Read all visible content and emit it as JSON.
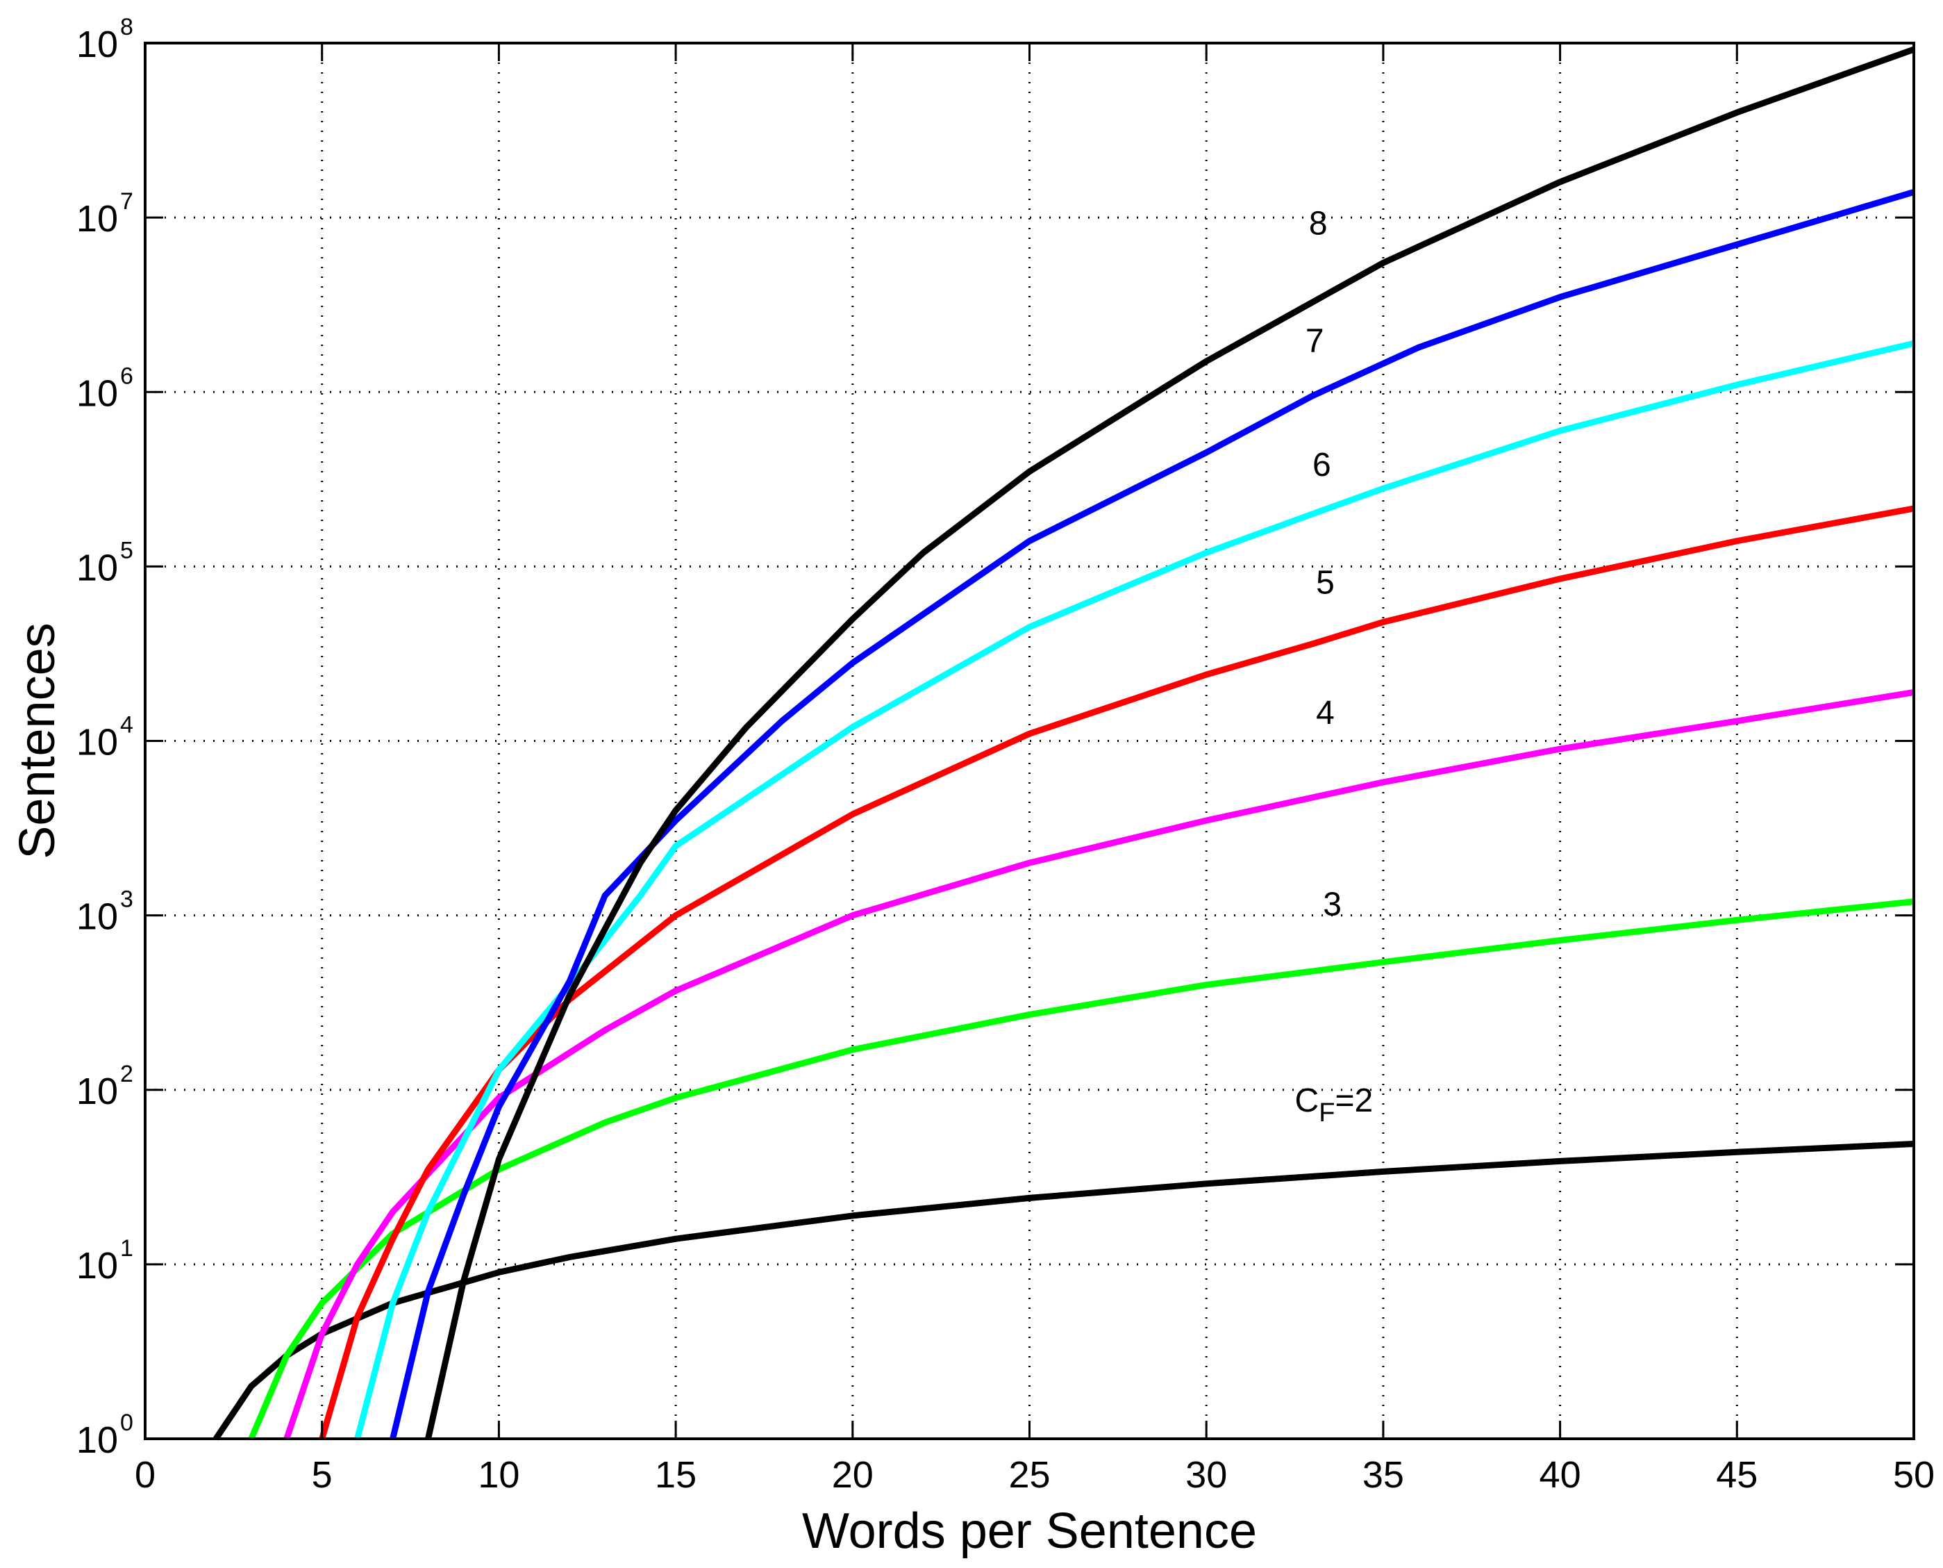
{
  "chart_data": {
    "type": "line",
    "title": "",
    "xlabel": "Words per Sentence",
    "ylabel": "Sentences",
    "xlim": [
      0,
      50
    ],
    "ylim": [
      1,
      100000000
    ],
    "yscale": "log",
    "grid": true,
    "grid_style": "dotted",
    "legend": "none (inline curve labels)",
    "x_ticks": [
      0,
      5,
      10,
      15,
      20,
      25,
      30,
      35,
      40,
      45,
      50
    ],
    "y_ticks": [
      {
        "base": "10",
        "exp": "0"
      },
      {
        "base": "10",
        "exp": "1"
      },
      {
        "base": "10",
        "exp": "2"
      },
      {
        "base": "10",
        "exp": "3"
      },
      {
        "base": "10",
        "exp": "4"
      },
      {
        "base": "10",
        "exp": "5"
      },
      {
        "base": "10",
        "exp": "6"
      },
      {
        "base": "10",
        "exp": "7"
      },
      {
        "base": "10",
        "exp": "8"
      }
    ],
    "series": [
      {
        "name": "C_F=2",
        "label": "C",
        "label_sub": "F",
        "label_suffix": "=2",
        "color": "#000000",
        "label_x": 32.5,
        "label_y": 75,
        "points": [
          [
            2,
            1
          ],
          [
            3,
            2
          ],
          [
            4,
            3
          ],
          [
            5,
            4
          ],
          [
            7,
            6
          ],
          [
            10,
            9
          ],
          [
            12,
            11
          ],
          [
            15,
            14
          ],
          [
            20,
            19
          ],
          [
            25,
            24
          ],
          [
            30,
            29
          ],
          [
            35,
            34
          ],
          [
            40,
            39
          ],
          [
            45,
            44
          ],
          [
            50,
            49
          ]
        ]
      },
      {
        "name": "C_F=3",
        "label": "3",
        "color": "#00ff00",
        "label_x": 33.3,
        "label_y": 1000,
        "points": [
          [
            3,
            1
          ],
          [
            4,
            3
          ],
          [
            5,
            6
          ],
          [
            7,
            15
          ],
          [
            10,
            35
          ],
          [
            13,
            65
          ],
          [
            15,
            90
          ],
          [
            20,
            170
          ],
          [
            25,
            270
          ],
          [
            30,
            400
          ],
          [
            35,
            540
          ],
          [
            40,
            720
          ],
          [
            45,
            940
          ],
          [
            50,
            1200
          ]
        ]
      },
      {
        "name": "C_F=4",
        "label": "4",
        "color": "#ff00ff",
        "label_x": 33.1,
        "label_y": 12500,
        "points": [
          [
            4,
            1
          ],
          [
            5,
            4
          ],
          [
            6,
            10
          ],
          [
            7,
            20
          ],
          [
            10,
            90
          ],
          [
            13,
            220
          ],
          [
            15,
            370
          ],
          [
            20,
            1000
          ],
          [
            25,
            2000
          ],
          [
            30,
            3500
          ],
          [
            35,
            5800
          ],
          [
            40,
            9000
          ],
          [
            45,
            13000
          ],
          [
            50,
            19000
          ]
        ]
      },
      {
        "name": "C_F=5",
        "label": "5",
        "color": "#ff0000",
        "label_x": 33.1,
        "label_y": 70000,
        "points": [
          [
            5,
            1
          ],
          [
            6,
            5
          ],
          [
            7,
            14
          ],
          [
            8,
            35
          ],
          [
            10,
            130
          ],
          [
            12,
            330
          ],
          [
            15,
            1000
          ],
          [
            20,
            3800
          ],
          [
            25,
            11000
          ],
          [
            30,
            24000
          ],
          [
            33,
            36000
          ],
          [
            35,
            48000
          ],
          [
            40,
            85000
          ],
          [
            45,
            140000
          ],
          [
            50,
            215000
          ]
        ]
      },
      {
        "name": "C_F=6",
        "label": "6",
        "color": "#00ffff",
        "label_x": 33.0,
        "label_y": 330000,
        "points": [
          [
            6,
            1
          ],
          [
            7,
            6
          ],
          [
            8,
            20
          ],
          [
            10,
            130
          ],
          [
            12,
            400
          ],
          [
            14,
            1300
          ],
          [
            15,
            2500
          ],
          [
            20,
            12000
          ],
          [
            25,
            45000
          ],
          [
            30,
            120000
          ],
          [
            33,
            200000
          ],
          [
            35,
            280000
          ],
          [
            40,
            600000
          ],
          [
            45,
            1100000
          ],
          [
            50,
            1900000
          ]
        ]
      },
      {
        "name": "C_F=7",
        "label": "7",
        "color": "#0000ff",
        "label_x": 32.8,
        "label_y": 1700000,
        "points": [
          [
            7,
            1
          ],
          [
            8,
            7
          ],
          [
            9,
            25
          ],
          [
            10,
            80
          ],
          [
            12,
            420
          ],
          [
            13,
            1300
          ],
          [
            15,
            3500
          ],
          [
            18,
            13000
          ],
          [
            20,
            28000
          ],
          [
            25,
            140000
          ],
          [
            30,
            450000
          ],
          [
            33,
            950000
          ],
          [
            36,
            1800000
          ],
          [
            40,
            3500000
          ],
          [
            45,
            7000000
          ],
          [
            50,
            14000000
          ]
        ]
      },
      {
        "name": "C_F=8",
        "label": "8",
        "color": "#000000",
        "label_x": 32.9,
        "label_y": 8000000,
        "points": [
          [
            8,
            1
          ],
          [
            9,
            8
          ],
          [
            10,
            40
          ],
          [
            12,
            350
          ],
          [
            14,
            2000
          ],
          [
            15,
            4000
          ],
          [
            17,
            12000
          ],
          [
            20,
            50000
          ],
          [
            22,
            120000
          ],
          [
            25,
            350000
          ],
          [
            30,
            1500000
          ],
          [
            35,
            5500000
          ],
          [
            40,
            16000000
          ],
          [
            45,
            40000000
          ],
          [
            50,
            92000000
          ]
        ]
      }
    ]
  }
}
